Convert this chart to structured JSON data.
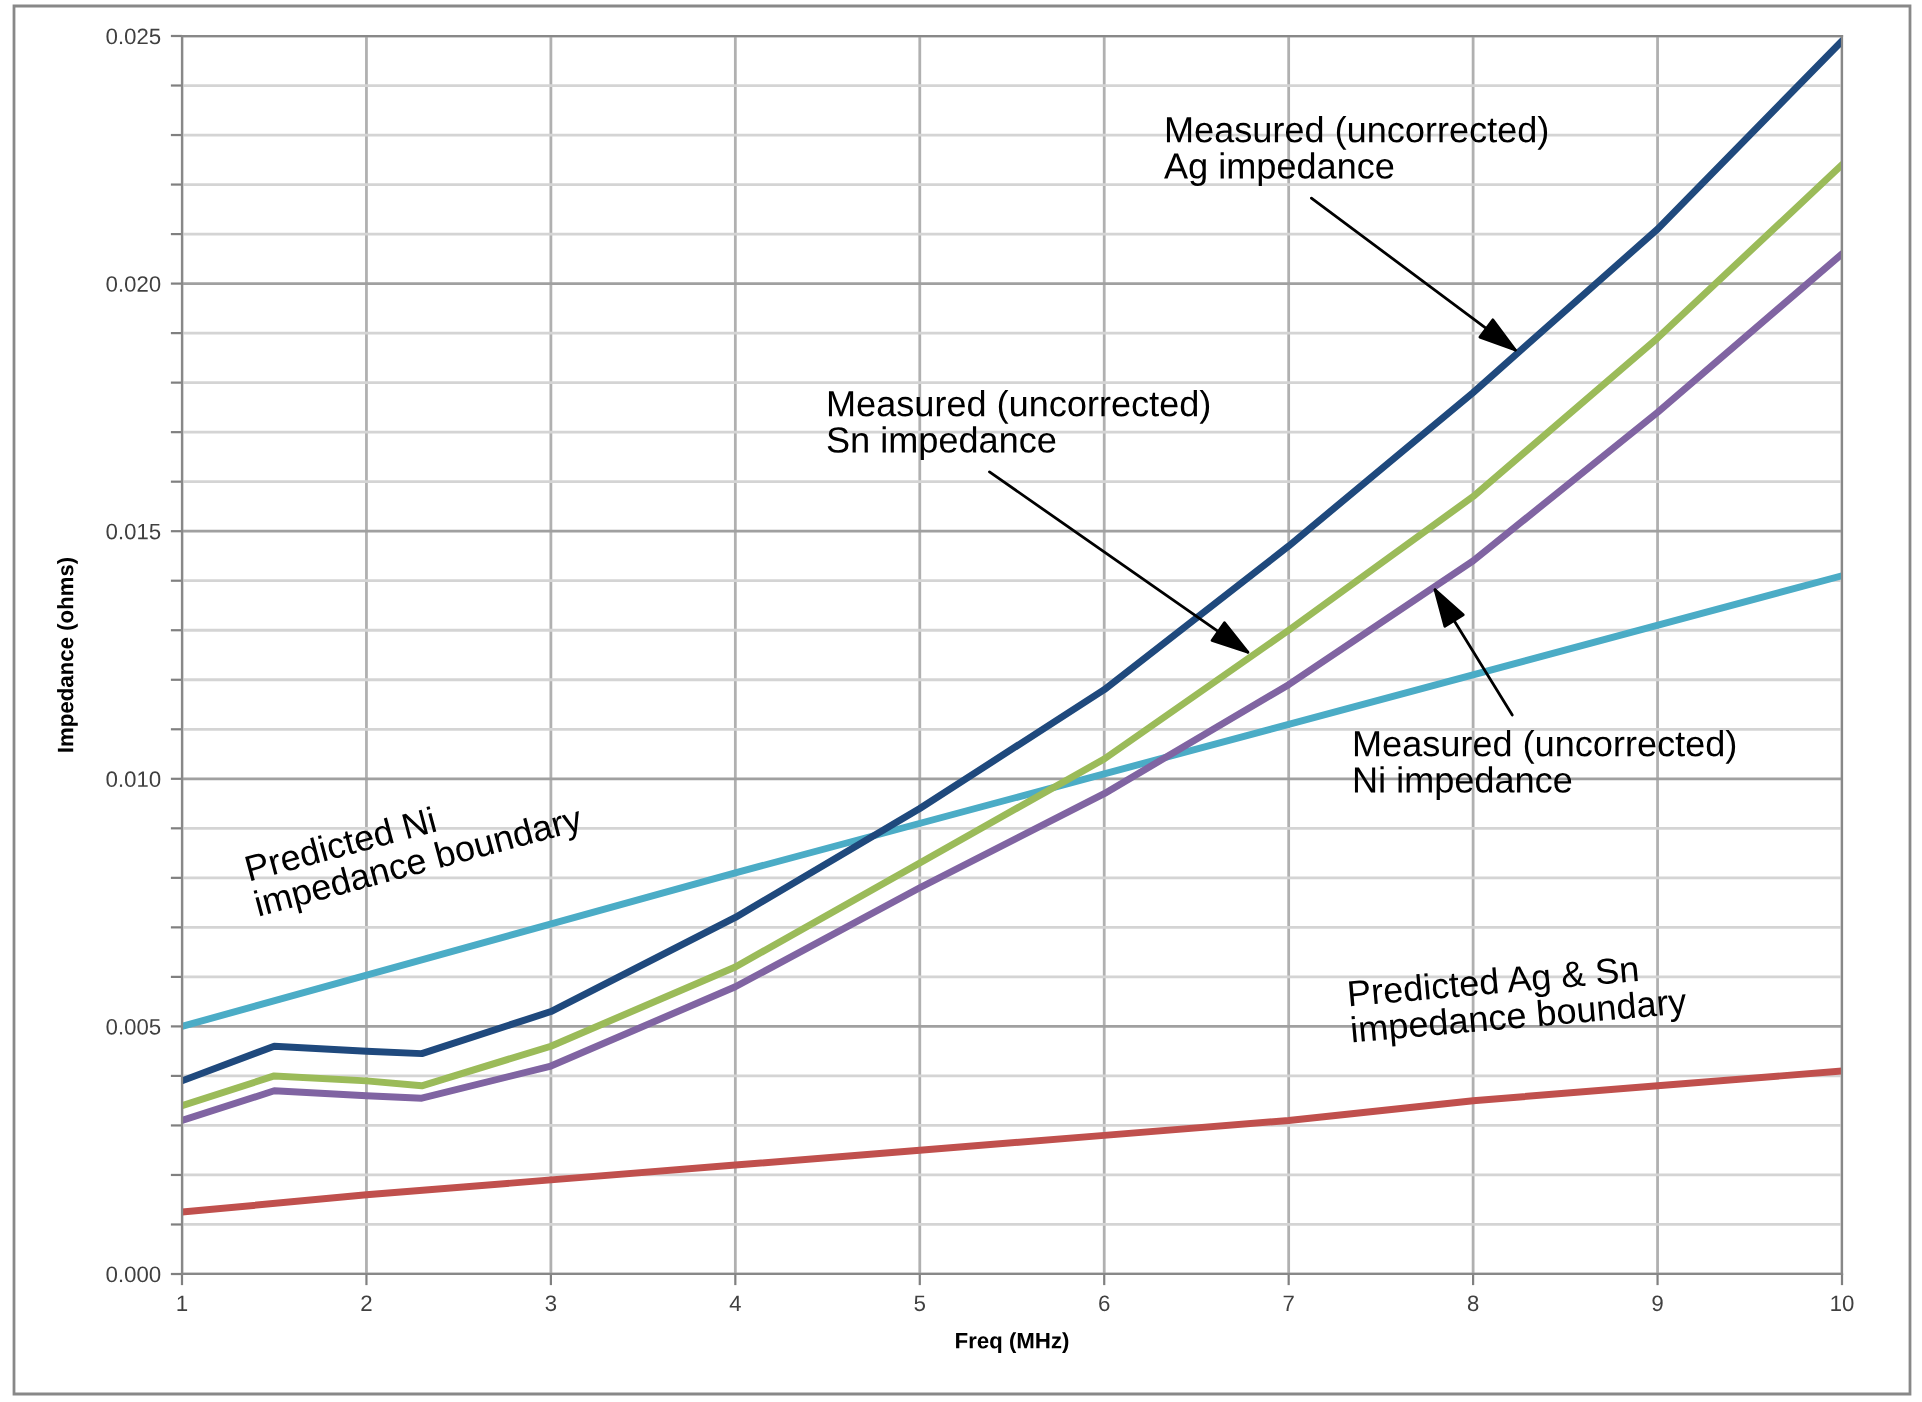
{
  "chart_data": {
    "type": "line",
    "xlabel": "Freq (MHz)",
    "ylabel": "Impedance (ohms)",
    "xlim": [
      1,
      10
    ],
    "xticks": [
      1,
      2,
      3,
      4,
      5,
      6,
      7,
      8,
      9,
      10
    ],
    "ylim": [
      0,
      0.025
    ],
    "yticks": [
      "0.000",
      {
        "value": 0.001,
        "label": null
      },
      {
        "value": 0.002,
        "label": null
      },
      {
        "value": 0.003,
        "label": null
      },
      {
        "value": 0.004,
        "label": null
      },
      {
        "value": 0.005,
        "label": "0.005"
      },
      {
        "value": 0.006,
        "label": null
      },
      {
        "value": 0.007,
        "label": null
      },
      {
        "value": 0.008,
        "label": null
      },
      {
        "value": 0.009,
        "label": null
      },
      {
        "value": 0.01,
        "label": "0.010"
      },
      {
        "value": 0.011,
        "label": null
      },
      {
        "value": 0.012,
        "label": null
      },
      {
        "value": 0.013,
        "label": null
      },
      {
        "value": 0.014,
        "label": null
      },
      {
        "value": 0.015,
        "label": "0.015"
      },
      {
        "value": 0.016,
        "label": null
      },
      {
        "value": 0.017,
        "label": null
      },
      {
        "value": 0.018,
        "label": null
      },
      {
        "value": 0.019,
        "label": null
      },
      {
        "value": 0.02,
        "label": "0.020"
      },
      {
        "value": 0.021,
        "label": null
      },
      {
        "value": 0.022,
        "label": null
      },
      {
        "value": 0.023,
        "label": null
      },
      {
        "value": 0.024,
        "label": null
      },
      {
        "value": 0.025,
        "label": "0.025"
      }
    ],
    "grid": true,
    "legend": false,
    "marker": "none",
    "line_style": "solid",
    "series": [
      {
        "color": "#4bacc6",
        "x": [
          1,
          4,
          7,
          10
        ],
        "values": [
          0.005,
          0.0081,
          0.0111,
          0.0141
        ]
      },
      {
        "color": "#c0504d",
        "x": [
          1,
          2,
          3,
          4,
          5,
          6,
          7,
          8,
          9,
          10
        ],
        "values": [
          0.00125,
          0.0016,
          0.0019,
          0.0022,
          0.0025,
          0.0028,
          0.0031,
          0.0035,
          0.0038,
          0.0041
        ]
      },
      {
        "color": "#8064a2",
        "x": [
          1,
          1.5,
          2,
          2.3,
          3,
          4,
          5,
          6,
          7,
          8,
          9,
          10
        ],
        "values": [
          0.0031,
          0.0037,
          0.0036,
          0.00355,
          0.0042,
          0.0058,
          0.0078,
          0.0097,
          0.0119,
          0.0144,
          0.0174,
          0.0206
        ]
      },
      {
        "color": "#9bbb59",
        "x": [
          1,
          1.5,
          2,
          2.3,
          3,
          4,
          5,
          6,
          7,
          8,
          9,
          10
        ],
        "values": [
          0.0034,
          0.004,
          0.0039,
          0.0038,
          0.0046,
          0.0062,
          0.0083,
          0.0104,
          0.013,
          0.0157,
          0.0189,
          0.0224
        ]
      },
      {
        "color": "#1f497d",
        "x": [
          1,
          1.5,
          2,
          2.3,
          3,
          4,
          5,
          6,
          7,
          8,
          9,
          10
        ],
        "values": [
          0.0039,
          0.0046,
          0.0045,
          0.00445,
          0.0053,
          0.0072,
          0.0094,
          0.0118,
          0.0147,
          0.0178,
          0.0211,
          0.0249
        ]
      }
    ],
    "annotations": [
      {
        "text": "Measured (uncorrected)\nAg impedance",
        "x": 8.25,
        "y": 0.0186
      },
      {
        "text": "Measured (uncorrected)\nSn impedance",
        "x": 6.8,
        "y": 0.0125
      },
      {
        "text": "Measured (uncorrected)\nNi impedance",
        "x": 7.78,
        "y": 0.0139
      },
      "Predicted Ni\nimpedance boundary",
      "Predicted Ag & Sn\nimpedance boundary"
    ]
  }
}
